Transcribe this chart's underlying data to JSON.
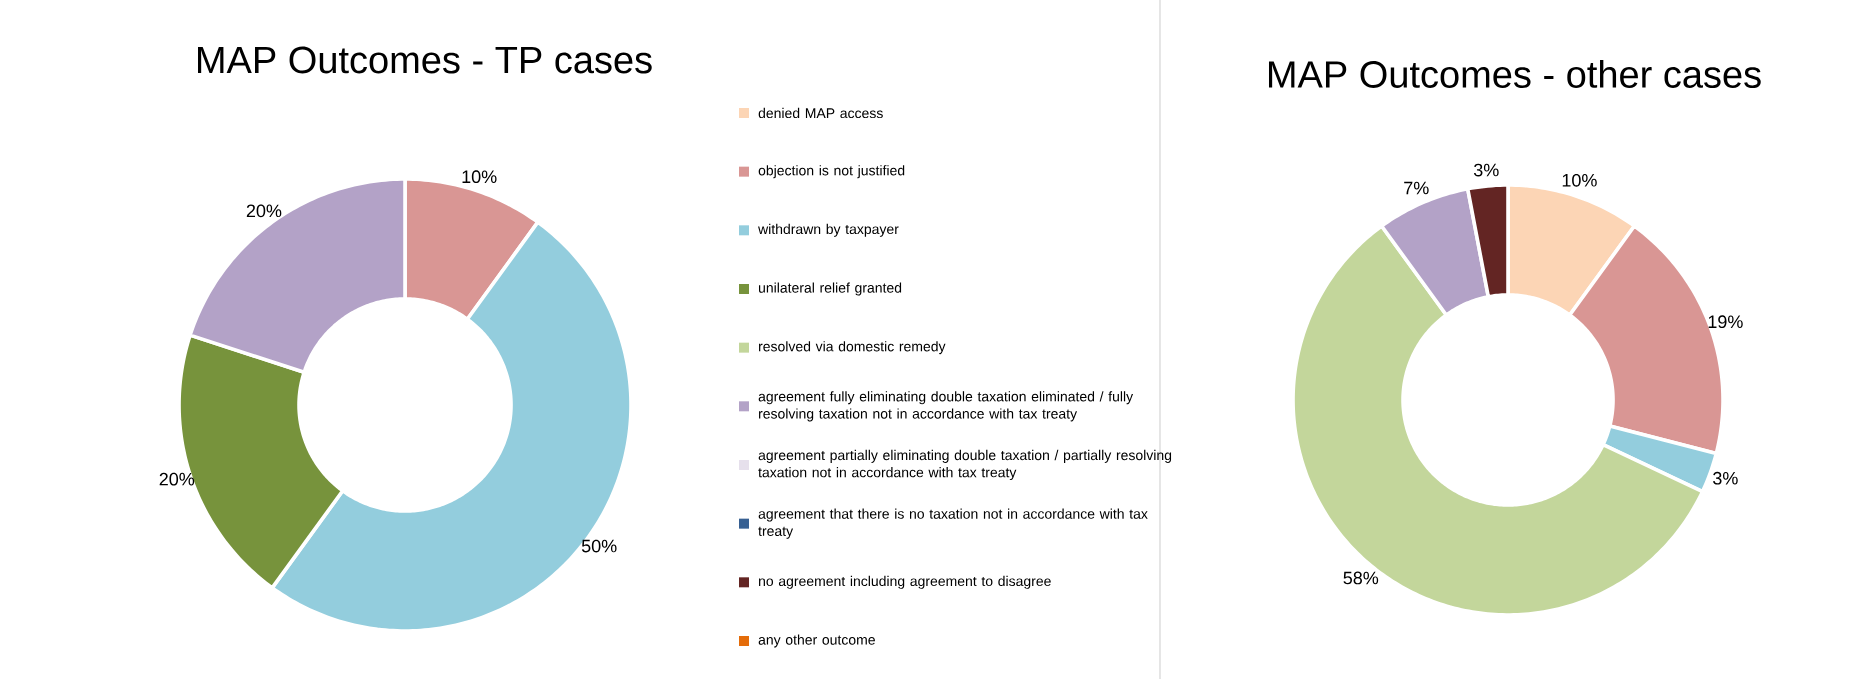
{
  "chart_data": [
    {
      "type": "donut",
      "title": "MAP Outcomes - TP cases",
      "legend": "right",
      "categories": [
        "denied MAP access",
        "objection is not justified",
        "withdrawn by taxpayer",
        "unilateral relief granted",
        "resolved via domestic remedy",
        "agreement fully eliminating double taxation eliminated / fully resolving taxation not in accordance with tax treaty",
        "agreement partially eliminating double taxation / partially resolving taxation not in accordance with tax treaty",
        "agreement that there is no taxation not in accordance with tax treaty",
        "no agreement including agreement to disagree",
        "any other outcome"
      ],
      "values": [
        0,
        10,
        50,
        20,
        0,
        20,
        0,
        0,
        0,
        0
      ],
      "value_labels": [
        null,
        "10%",
        "50%",
        "20%",
        null,
        "20%",
        null,
        null,
        null,
        null
      ],
      "colors": [
        "#fcd5b5",
        "#d99694",
        "#93cddd",
        "#77933c",
        "#c3d69b",
        "#b3a2c7",
        "#e6e0ec",
        "#376092",
        "#632523",
        "#e46c0a"
      ]
    },
    {
      "type": "donut",
      "title": "MAP Outcomes - other cases",
      "categories": [
        null,
        null,
        null,
        null,
        null,
        null,
        null,
        null,
        null,
        null
      ],
      "values": [
        10,
        19,
        3,
        0,
        58,
        7,
        0,
        0,
        3,
        0
      ],
      "value_labels": [
        "10%",
        "19%",
        "3%",
        null,
        "58%",
        "7%",
        null,
        null,
        "3%",
        null
      ],
      "colors": [
        "#fcd5b5",
        "#d99694",
        "#93cddd",
        "#77933c",
        "#c3d69b",
        "#b3a2c7",
        "#e6e0ec",
        "#376092",
        "#632523",
        "#e46c0a"
      ]
    }
  ]
}
